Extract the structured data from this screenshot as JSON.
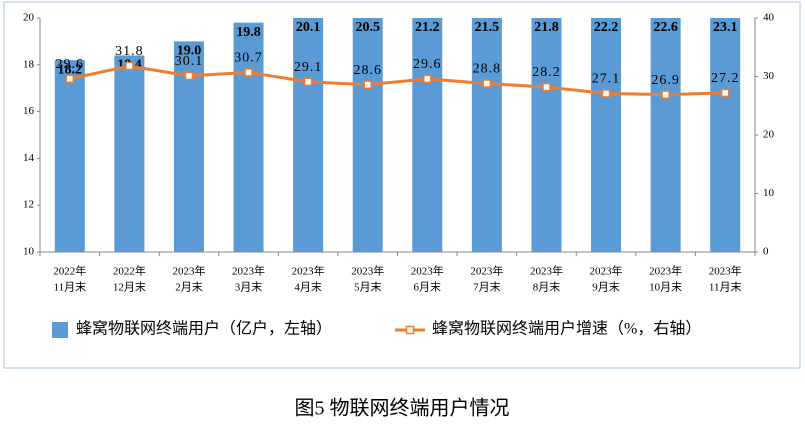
{
  "chart_data": {
    "type": "bar_line",
    "caption": "图5 物联网终端用户情况",
    "categories": [
      [
        "2022年",
        "11月末"
      ],
      [
        "2022年",
        "12月末"
      ],
      [
        "2023年",
        "2月末"
      ],
      [
        "2023年",
        "3月末"
      ],
      [
        "2023年",
        "4月末"
      ],
      [
        "2023年",
        "5月末"
      ],
      [
        "2023年",
        "6月末"
      ],
      [
        "2023年",
        "7月末"
      ],
      [
        "2023年",
        "8月末"
      ],
      [
        "2023年",
        "9月末"
      ],
      [
        "2023年",
        "10月末"
      ],
      [
        "2023年",
        "11月末"
      ]
    ],
    "series": [
      {
        "name": "蜂窝物联网终端用户（亿户，左轴）",
        "color": "#5b9bd5",
        "type": "bar",
        "values": [
          18.2,
          18.4,
          19.0,
          19.8,
          20.1,
          20.5,
          21.2,
          21.5,
          21.8,
          22.2,
          22.6,
          23.1
        ],
        "value_labels": [
          "18.2",
          "18.4",
          "19.0",
          "19.8",
          "20.1",
          "20.5",
          "21.2",
          "21.5",
          "21.8",
          "22.2",
          "22.6",
          "23.1"
        ]
      },
      {
        "name": "蜂窝物联网终端用户增速（%，右轴）",
        "color": "#ed7d31",
        "type": "line",
        "axis": "y2",
        "values": [
          29.6,
          31.8,
          30.1,
          30.7,
          29.1,
          28.6,
          29.6,
          28.8,
          28.2,
          27.1,
          26.9,
          27.2
        ]
      }
    ],
    "ylim": [
      10,
      20
    ],
    "yticks": [
      10,
      12,
      14,
      16,
      18,
      20
    ],
    "y2lim": [
      0,
      40
    ],
    "y2ticks": [
      0,
      10,
      20,
      30,
      40
    ],
    "legend": "bottom"
  }
}
